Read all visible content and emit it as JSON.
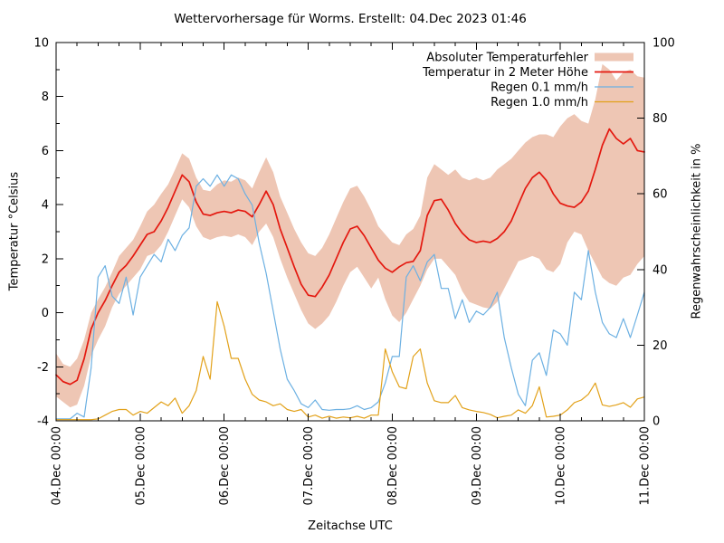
{
  "chart_data": {
    "type": "line",
    "title": "Wettervorhersage für Worms. Erstellt: 04.Dec 2023 01:46",
    "x_axis": {
      "label": "Zeitachse UTC",
      "start_hour": 0,
      "end_hour": 168,
      "step_hours": 2,
      "major_tick_hours": 24,
      "minor_tick_hours": 6,
      "tick_labels": [
        "04.Dec 00:00",
        "05.Dec 00:00",
        "06.Dec 00:00",
        "07.Dec 00:00",
        "08.Dec 00:00",
        "09.Dec 00:00",
        "10.Dec 00:00",
        "11.Dec 00:00"
      ]
    },
    "y_left": {
      "label": "Temperatur °Celsius",
      "min": -4,
      "max": 10,
      "major_ticks": [
        -4,
        -2,
        0,
        2,
        4,
        6,
        8,
        10
      ],
      "minor_step": 1
    },
    "y_right": {
      "label": "Regenwahrscheinlichkeit in %",
      "min": 0,
      "max": 100,
      "major_ticks": [
        0,
        20,
        40,
        60,
        80,
        100
      ]
    },
    "band": {
      "name": "Absoluter Temperaturfehler",
      "color": "#eec6b4",
      "upper": [
        -1.5,
        -1.9,
        -2,
        -1.7,
        -1,
        0,
        0.5,
        0.95,
        1.5,
        2.1,
        2.4,
        2.7,
        3.2,
        3.75,
        4,
        4.4,
        4.75,
        5.3,
        5.9,
        5.7,
        5,
        4.55,
        4.5,
        4.75,
        4.9,
        4.85,
        5,
        4.9,
        4.6,
        5.2,
        5.75,
        5.2,
        4.3,
        3.7,
        3.1,
        2.6,
        2.2,
        2.1,
        2.4,
        2.9,
        3.5,
        4.1,
        4.6,
        4.7,
        4.3,
        3.8,
        3.2,
        2.9,
        2.6,
        2.5,
        2.9,
        3.1,
        3.6,
        5,
        5.5,
        5.3,
        5.1,
        5.3,
        5,
        4.9,
        5,
        4.9,
        5,
        5.3,
        5.5,
        5.7,
        6,
        6.3,
        6.5,
        6.6,
        6.6,
        6.5,
        6.9,
        7.2,
        7.35,
        7.1,
        7,
        7.9,
        9.2,
        9,
        8.6,
        8.9,
        9,
        8.75,
        8.7
      ],
      "lower": [
        -3.1,
        -3.3,
        -3.5,
        -3.4,
        -2.7,
        -1.6,
        -1,
        -0.5,
        0.2,
        0.7,
        1,
        1.3,
        1.6,
        2.1,
        2.2,
        2.5,
        3,
        3.6,
        4.2,
        3.9,
        3.2,
        2.8,
        2.7,
        2.8,
        2.85,
        2.8,
        2.9,
        2.8,
        2.5,
        3,
        3.3,
        2.8,
        2,
        1.3,
        0.7,
        0.1,
        -0.4,
        -0.6,
        -0.4,
        -0.1,
        0.4,
        1,
        1.5,
        1.7,
        1.3,
        0.9,
        1.3,
        0.5,
        -0.1,
        -0.35,
        0,
        0.5,
        1,
        1.6,
        2,
        2,
        1.7,
        1.4,
        0.8,
        0.4,
        0.3,
        0.2,
        0.15,
        0.4,
        0.9,
        1.4,
        1.9,
        2,
        2.1,
        2,
        1.6,
        1.5,
        1.8,
        2.6,
        3,
        2.9,
        2.3,
        1.8,
        1.3,
        1.1,
        1,
        1.3,
        1.4,
        1.8,
        2.1
      ]
    },
    "series": [
      {
        "name": "Temperatur in 2 Meter Höhe",
        "axis": "left",
        "color": "#e4180f",
        "width": 1.7,
        "values": [
          -2.3,
          -2.55,
          -2.65,
          -2.5,
          -1.7,
          -0.6,
          0,
          0.45,
          1,
          1.5,
          1.75,
          2.1,
          2.5,
          2.9,
          3,
          3.4,
          3.9,
          4.5,
          5.1,
          4.85,
          4.1,
          3.65,
          3.6,
          3.7,
          3.75,
          3.7,
          3.8,
          3.75,
          3.55,
          4,
          4.5,
          4,
          3.1,
          2.4,
          1.7,
          1.05,
          0.65,
          0.6,
          0.95,
          1.4,
          2,
          2.6,
          3.1,
          3.2,
          2.85,
          2.4,
          1.95,
          1.65,
          1.5,
          1.7,
          1.85,
          1.9,
          2.3,
          3.6,
          4.15,
          4.2,
          3.8,
          3.3,
          2.95,
          2.7,
          2.6,
          2.65,
          2.6,
          2.75,
          3,
          3.4,
          4,
          4.6,
          5,
          5.2,
          4.9,
          4.4,
          4.05,
          3.95,
          3.9,
          4.1,
          4.5,
          5.3,
          6.2,
          6.8,
          6.45,
          6.25,
          6.45,
          6,
          5.95
        ]
      },
      {
        "name": "Regen 0.1 mm/h",
        "axis": "right",
        "color": "#6cb0e2",
        "width": 1.2,
        "values": [
          0.5,
          0.5,
          0.5,
          2,
          1,
          14,
          38,
          41,
          33,
          31,
          38,
          28,
          38,
          41,
          44,
          42,
          48,
          45,
          49,
          51,
          62,
          64,
          62,
          65,
          62,
          65,
          64,
          60,
          57,
          47,
          39,
          29,
          19,
          11,
          8,
          4.5,
          3.5,
          5.5,
          3,
          2.8,
          3,
          3,
          3.2,
          4,
          3,
          3.5,
          5,
          10,
          17,
          17,
          38,
          41,
          37,
          42,
          44,
          35,
          35,
          27,
          32,
          26,
          29,
          28,
          30,
          34,
          22,
          14,
          7,
          4,
          16,
          18,
          12,
          24,
          23,
          20,
          34,
          32,
          45,
          34,
          26,
          23,
          22,
          27,
          22,
          28,
          34
        ]
      },
      {
        "name": "Regen 1.0 mm/h",
        "axis": "right",
        "color": "#e2a119",
        "width": 1.2,
        "values": [
          0.3,
          0.3,
          0.3,
          0.3,
          0.3,
          0.3,
          0.5,
          1.5,
          2.5,
          3,
          3,
          1.5,
          2.5,
          2,
          3.5,
          5,
          4,
          6,
          2,
          4,
          8,
          17,
          11,
          31.5,
          25,
          16.5,
          16.5,
          11,
          7,
          5.5,
          5,
          4,
          4.5,
          3,
          2.5,
          3,
          1,
          1.5,
          0.7,
          1.2,
          0.7,
          1,
          0.8,
          1.2,
          0.7,
          1.5,
          1.5,
          19,
          13,
          9,
          8.5,
          17,
          19,
          10,
          5.3,
          4.8,
          4.8,
          6.7,
          3.5,
          2.9,
          2.5,
          2.2,
          1.7,
          0.8,
          1.2,
          1.5,
          2.9,
          2,
          4,
          9,
          1,
          1.2,
          1.5,
          2.9,
          4.8,
          5.5,
          7,
          10,
          4.2,
          3.8,
          4.2,
          4.8,
          3.6,
          5.8,
          6.3
        ]
      }
    ],
    "legend": {
      "position": "top-right",
      "entries": [
        {
          "label": "Absoluter Temperaturfehler",
          "swatch": "band",
          "color": "#eec6b4"
        },
        {
          "label": "Temperatur in 2 Meter Höhe",
          "swatch": "line",
          "color": "#e4180f",
          "width": 1.7
        },
        {
          "label": "Regen 0.1 mm/h",
          "swatch": "line",
          "color": "#6cb0e2",
          "width": 1.2
        },
        {
          "label": "Regen 1.0 mm/h",
          "swatch": "line",
          "color": "#e2a119",
          "width": 1.2
        }
      ]
    }
  }
}
